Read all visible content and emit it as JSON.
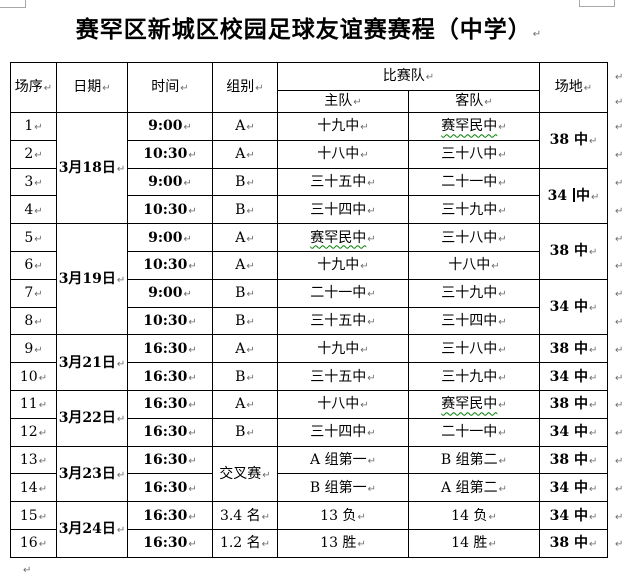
{
  "page": {
    "title": "赛罕区新城区校园足球友谊赛赛程（中学）"
  },
  "marks": {
    "pilcrow": "↵"
  },
  "colors": {
    "table_border": "#000000",
    "pilcrow_gray": "#6e6e6e",
    "grammar_wavy_green": "#008000",
    "background": "#ffffff"
  },
  "table": {
    "header": {
      "match_no": "场序",
      "date": "日期",
      "time": "时间",
      "group": "组别",
      "teams": "比赛队",
      "home": "主队",
      "away": "客队",
      "venue": "场地"
    },
    "rows": [
      {
        "no": "1",
        "date": "3月18日",
        "date_span": 4,
        "time": "9:00",
        "group": "A",
        "home": "十九中",
        "away": "赛罕民中",
        "away_wavy": true,
        "venue": "38 中",
        "venue_span": 2
      },
      {
        "no": "2",
        "time": "10:30",
        "group": "A",
        "home": "十八中",
        "away": "三十八中"
      },
      {
        "no": "3",
        "time": "9:00",
        "group": "B",
        "home": "三十五中",
        "away": "二十一中",
        "venue": "34 中",
        "venue_span": 2,
        "venue_caret": true
      },
      {
        "no": "4",
        "time": "10:30",
        "group": "B",
        "home": "三十四中",
        "away": "三十九中"
      },
      {
        "no": "5",
        "date": "3月19日",
        "date_span": 4,
        "time": "9:00",
        "group": "A",
        "home": "赛罕民中",
        "home_wavy": true,
        "away": "三十八中",
        "venue": "38 中",
        "venue_span": 2
      },
      {
        "no": "6",
        "time": "10:30",
        "group": "A",
        "home": "十九中",
        "away": "十八中"
      },
      {
        "no": "7",
        "time": "9:00",
        "group": "B",
        "home": "二十一中",
        "away": "三十九中",
        "venue": "34 中",
        "venue_span": 2
      },
      {
        "no": "8",
        "time": "10:30",
        "group": "B",
        "home": "三十五中",
        "away": "三十四中"
      },
      {
        "no": "9",
        "date": "3月21日",
        "date_span": 2,
        "time": "16:30",
        "group": "A",
        "home": "十九中",
        "away": "三十八中",
        "venue": "38 中",
        "venue_span": 1
      },
      {
        "no": "10",
        "time": "16:30",
        "group": "B",
        "home": "三十五中",
        "away": "三十九中",
        "venue": "34 中",
        "venue_span": 1
      },
      {
        "no": "11",
        "date": "3月22日",
        "date_span": 2,
        "time": "16:30",
        "group": "A",
        "home": "十八中",
        "away": "赛罕民中",
        "away_wavy": true,
        "venue": "38 中",
        "venue_span": 1
      },
      {
        "no": "12",
        "time": "16:30",
        "group": "B",
        "home": "三十四中",
        "away": "二十一中",
        "venue": "34 中",
        "venue_span": 1
      },
      {
        "no": "13",
        "date": "3月23日",
        "date_span": 2,
        "time": "16:30",
        "group": "交叉赛",
        "group_span": 2,
        "home": "A 组第一",
        "away": "B 组第二",
        "venue": "38 中",
        "venue_span": 1
      },
      {
        "no": "14",
        "time": "16:30",
        "home": "B 组第一",
        "away": "A 组第二",
        "venue": "34 中",
        "venue_span": 1
      },
      {
        "no": "15",
        "date": "3月24日",
        "date_span": 2,
        "time": "16:30",
        "group": "3.4 名",
        "home": "13 负",
        "away": "14 负",
        "venue": "34 中",
        "venue_span": 1
      },
      {
        "no": "16",
        "time": "16:30",
        "group": "1.2 名",
        "home": "13 胜",
        "away": "14 胜",
        "venue": "38 中",
        "venue_span": 1
      }
    ]
  }
}
